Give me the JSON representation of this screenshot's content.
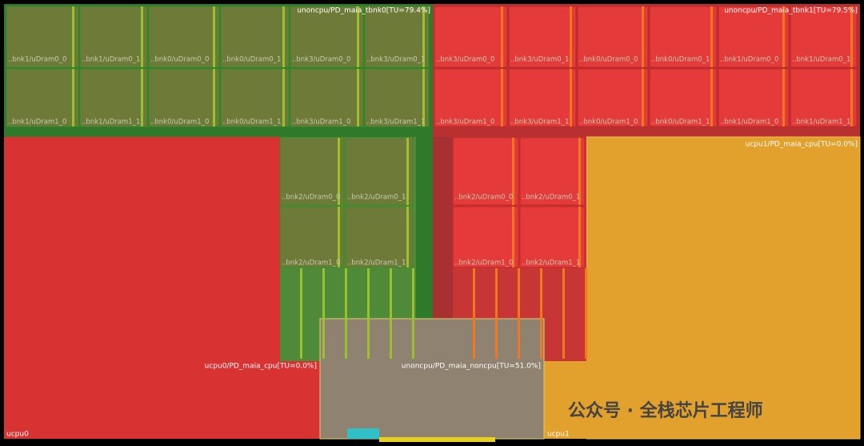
{
  "regions": {
    "tbnk0": "unoncpu/PD_maia_tbnk0[TU=79.4%]",
    "tbnk1": "unoncpu/PD_maia_tbnk1[TU=79.5%]",
    "cpu1": "ucpu1/PD_maia_cpu[TU=0.0%]",
    "cpu0": "ucpu0/PD_maia_cpu[TU=0.0%]",
    "noncpu": "unoncpu/PD_maia_noncpu[TU=51.0%]",
    "ucpu0": "ucpu0",
    "ucpu1": "ucpu1"
  },
  "memories": {
    "tbnk0": [
      [
        "..bnk1/uDram0_0",
        "..bnk1/uDram0_1",
        "..bnk0/uDram0_0",
        "..bnk0/uDram0_1",
        "..bnk3/uDram0_0",
        "..bnk3/uDram0_1"
      ],
      [
        "..bnk1/uDram1_0",
        "..bnk1/uDram1_1",
        "..bnk0/uDram1_0",
        "..bnk0/uDram1_1",
        "..bnk3/uDram1_0",
        "..bnk3/uDram1_1"
      ]
    ],
    "tbnk1": [
      [
        "..bnk3/uDram0_0",
        "..bnk3/uDram0_1",
        "..bnk0/uDram0_0",
        "..bnk0/uDram0_1",
        "..bnk1/uDram0_0",
        "..bnk1/uDram0_1"
      ],
      [
        "..bnk3/uDram1_0",
        "..bnk3/uDram1_1",
        "..bnk0/uDram1_0",
        "..bnk0/uDram1_1",
        "..bnk1/uDram1_0",
        "..bnk1/uDram1_1"
      ]
    ],
    "mid0": [
      [
        "..bnk2/uDram0_0",
        "..bnk2/uDram0_1"
      ],
      [
        "..bnk2/uDram1_0",
        "..bnk2/uDram1_1"
      ]
    ],
    "mid1": [
      [
        "..bnk2/uDram0_0",
        "..bnk2/uDram0_1"
      ],
      [
        "..bnk2/uDram1_0",
        "..bnk2/uDram1_1"
      ]
    ]
  },
  "watermark": "公众号 · 全栈芯片工程师"
}
